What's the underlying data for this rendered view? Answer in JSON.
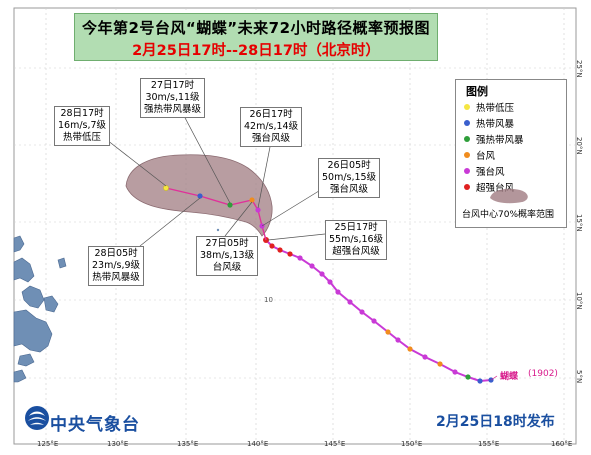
{
  "title": {
    "line1": "今年第2号台风“蝴蝶”未来72小时路径概率预报图",
    "line2": "2月25日17时--28日17时（北京时）"
  },
  "legend": {
    "title": "图例",
    "items": [
      {
        "label": "热带低压",
        "color": "#f5e642"
      },
      {
        "label": "热带风暴",
        "color": "#3a5fcd"
      },
      {
        "label": "强热带风暴",
        "color": "#2e9e3a"
      },
      {
        "label": "台风",
        "color": "#f08c1e"
      },
      {
        "label": "强台风",
        "color": "#c93ad6"
      },
      {
        "label": "超强台风",
        "color": "#e02020"
      }
    ],
    "probability_label": "台风中心70%概率范围"
  },
  "callouts": [
    {
      "id": "28-17",
      "lines": [
        "28日17时",
        "16m/s,7级",
        "热带低压"
      ]
    },
    {
      "id": "27-17",
      "lines": [
        "27日17时",
        "30m/s,11级",
        "强热带风暴级"
      ]
    },
    {
      "id": "26-17",
      "lines": [
        "26日17时",
        "42m/s,14级",
        "强台风级"
      ]
    },
    {
      "id": "26-05",
      "lines": [
        "26日05时",
        "50m/s,15级",
        "强台风级"
      ]
    },
    {
      "id": "25-17",
      "lines": [
        "25日17时",
        "55m/s,16级",
        "超强台风级"
      ]
    },
    {
      "id": "27-05",
      "lines": [
        "27日05时",
        "38m/s,13级",
        "台风级"
      ]
    },
    {
      "id": "28-05",
      "lines": [
        "28日05时",
        "23m/s,9级",
        "热带风暴级"
      ]
    }
  ],
  "storm_label": {
    "name": "蝴蝶",
    "code": "(1902)"
  },
  "map_data": {
    "lon_ticks": [
      "125°E",
      "130°E",
      "135°E",
      "140°E",
      "145°E",
      "150°E",
      "155°E",
      "160°E"
    ],
    "lat_ticks": [
      "25°N",
      "20°N",
      "15°N",
      "10°N",
      "5°N"
    ],
    "inner_lat_label": "10"
  },
  "footer": {
    "agency": "中央气象台",
    "issued": "2月25日18时发布"
  },
  "colors": {
    "track_past": "#c93ad6",
    "probability_fill": "#a07c82",
    "ocean": "#ffffff",
    "land": "#6f8fb5"
  }
}
